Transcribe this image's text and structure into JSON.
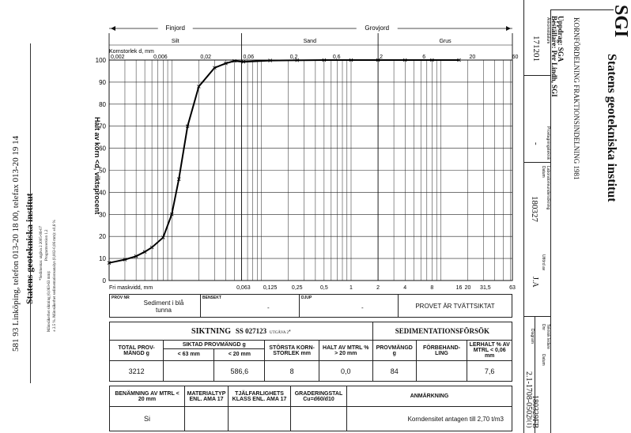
{
  "left_footer": {
    "inst_name": "Statens geotekniska institut",
    "address": "581 93 Linköping, telefon 013-20 18 00, telefax 013-20 19 14",
    "note1": "*Sedimentar. utgåva 2 2005-06-07",
    "note2": "± 2.5 %. Mätosäkerhet sedimentationsanalys (0,002-0,06 mm): ±0,6 %",
    "note3": "Programversion 1.2",
    "note4": "Mätosäkerhet siktning (0,063-63 mm):"
  },
  "header": {
    "logo": "SGI",
    "inst_name": "Statens geotekniska institut",
    "subtitle": "KORNFÖRDELNING FRAKTIONSINDELNING 1981",
    "uppdrag": "Uppdrag: SGA",
    "bestallare": "Beställare: Per Lindh, SGI",
    "cells": [
      {
        "label": "Ankomstdatum",
        "value": "171201"
      },
      {
        "label": "Provtagningsteknik",
        "value": "-"
      },
      {
        "label": "Laboratorieundersökning",
        "value": ""
      },
      {
        "label": "Datum",
        "value": "180327"
      },
      {
        "label": "Utförd av",
        "value": "J.A"
      }
    ],
    "diagram_label": "Diagram",
    "diagram_value": "",
    "page": "1(1)",
    "dnr_label": "Dnr",
    "dnr_value": "2.1-1708-0502",
    "datum2_label": "Datum",
    "datum2_value": "180329",
    "tekn_label": "Teknisk ledare",
    "tekn_value": "FB"
  },
  "chart_data": {
    "type": "line",
    "title": "",
    "xlabel": "Fri maskvidd, mm",
    "x_top_label": "Kornstorlek d, mm",
    "ylabel": "Halt av korn <d, viktsprocent",
    "x_scale": "log",
    "xlim": [
      0.002,
      63
    ],
    "ylim": [
      0,
      100
    ],
    "y_ticks": [
      "0",
      "10",
      "20",
      "30",
      "40",
      "50",
      "60",
      "70",
      "80",
      "90",
      "100"
    ],
    "x_ticks_top": [
      "0,002",
      "0,006",
      "0,02",
      "0,06",
      "0,2",
      "0,6",
      "2",
      "6",
      "20",
      "60"
    ],
    "x_ticks_bottom": [
      "0,063",
      "0,125",
      "0,25",
      "0,5",
      "1",
      "2",
      "4",
      "8",
      "16",
      "20",
      "31,5",
      "63"
    ],
    "fraction_top": [
      {
        "label": "Finjord"
      },
      {
        "label": "Grovjord"
      }
    ],
    "fraction_sub": [
      {
        "label": "Silt"
      },
      {
        "label": "Sand"
      },
      {
        "label": "Grus"
      }
    ],
    "series": [
      {
        "x": [
          0.002,
          0.003,
          0.004,
          0.005,
          0.006,
          0.008,
          0.01,
          0.012,
          0.015,
          0.02,
          0.03,
          0.04,
          0.05,
          0.063,
          0.125,
          0.25,
          0.5,
          1,
          2,
          4,
          8,
          16
        ],
        "y": [
          8,
          9.5,
          11,
          13,
          15,
          19.5,
          30,
          46,
          70,
          88,
          96.5,
          98.5,
          99.6,
          99.2,
          99.8,
          99.9,
          100,
          100,
          100,
          100,
          100,
          100
        ]
      }
    ]
  },
  "prov": {
    "provnr_label": "PROV NR",
    "provnr_value": "Sediment i blå tunna",
    "bensekt_label": "BENSEKT",
    "bensekt_value": "-",
    "djup_label": "DJUP",
    "djup_value": "-",
    "provet": "PROVET ÄR TVÄTTSIKTAT"
  },
  "siktning": {
    "title": "SIKTNING",
    "standard": "SS 027123",
    "utgava": "UTGÅVA 2",
    "star": "*",
    "sed_title": "SEDIMENTATIONSFÖRSÖK",
    "col_total": "TOTAL PROV-MÄNGD g",
    "col_siktad": "SIKTAD PROVMÄNGD g",
    "col_lt63": "< 63 mm",
    "col_lt20": "< 20 mm",
    "col_storsta": "STÖRSTA KORN-STORLEK mm",
    "col_halt": "HALT AV MTRL % > 20 mm",
    "col_provmangd": "PROVMÄNGD g",
    "col_forbehand": "FÖRBEHAND-LING",
    "col_lerhalt": "LERHALT % AV MTRL < 0,06 mm",
    "v_total": "3212",
    "v_lt63": "",
    "v_lt20": "586,6",
    "v_storsta": "8",
    "v_halt": "0,0",
    "v_provmangd": "84",
    "v_forbehand": "",
    "v_lerhalt": "7,6"
  },
  "bottom": {
    "col_benamning": "BENÄMNING AV MTRL < 20 mm",
    "col_materialtyp": "MATERIALTYP ENL. AMA 17",
    "col_tjal": "TJÄLFARLIGHETS KLASS ENL. AMA 17",
    "col_gradering": "GRADERINGSTAL Cu=d60/d10",
    "col_anmarkning": "ANMÄRKNING",
    "v_benamning": "Si",
    "v_materialtyp": "",
    "v_tjal": "",
    "v_gradering": "",
    "v_anmarkning": "Korndensitet antagen till 2,70 t/m3"
  }
}
